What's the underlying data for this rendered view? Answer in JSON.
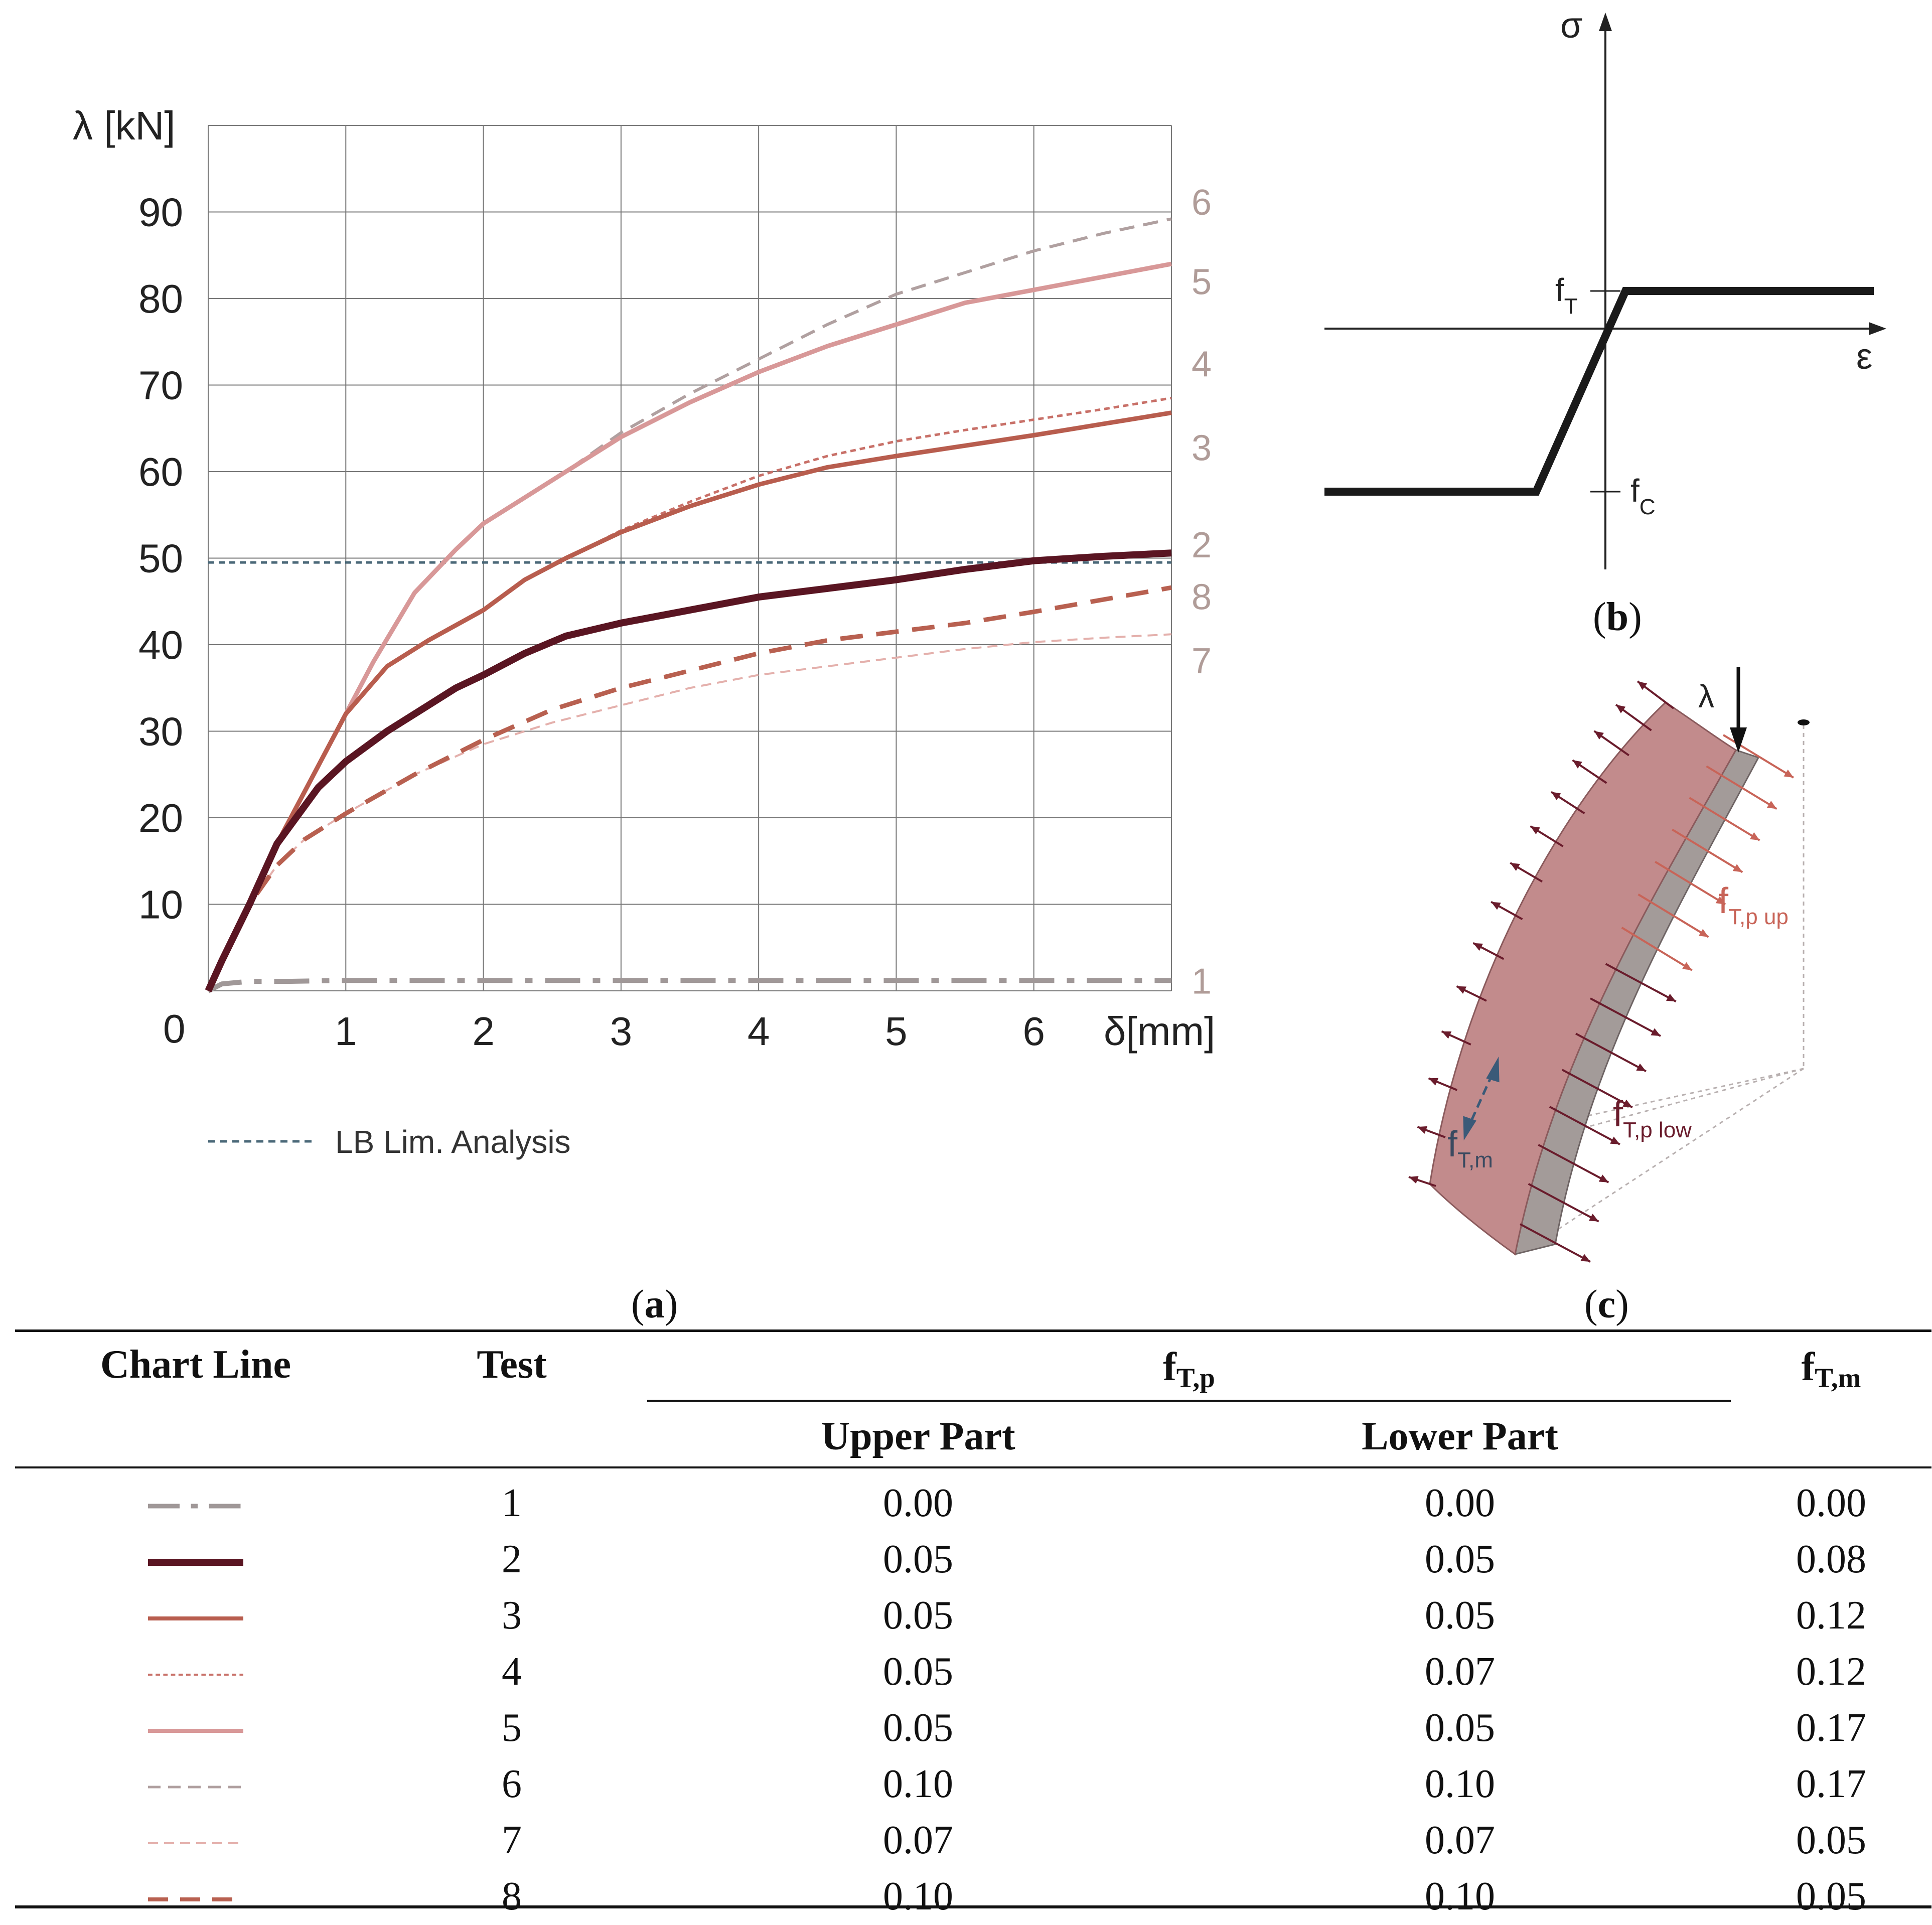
{
  "chart_data": [
    {
      "type": "line",
      "panel": "a",
      "ylabel": "λ [kN]",
      "xlabel": "δ[mm]",
      "xlim": [
        0,
        7
      ],
      "ylim": [
        0,
        100
      ],
      "x_ticks": [
        1,
        2,
        3,
        4,
        5,
        6
      ],
      "y_ticks": [
        10,
        20,
        30,
        40,
        50,
        60,
        70,
        80,
        90
      ],
      "origin_label": "0",
      "grid": true,
      "reference_line": {
        "name": "LB Lim. Analysis",
        "value": 49.5,
        "color": "#4a6878"
      },
      "series": [
        {
          "name": "1",
          "color": "#a09898",
          "style": "dashdot",
          "width": 10,
          "x": [
            0,
            0.1,
            0.3,
            0.6,
            1,
            2,
            3,
            4,
            5,
            6,
            7
          ],
          "y": [
            0,
            0.8,
            1.1,
            1.1,
            1.2,
            1.2,
            1.2,
            1.2,
            1.2,
            1.2,
            1.2
          ]
        },
        {
          "name": "2",
          "color": "#5a1522",
          "style": "solid",
          "width": 14,
          "x": [
            0,
            0.1,
            0.3,
            0.5,
            0.8,
            1.0,
            1.3,
            1.6,
            1.8,
            2.0,
            2.3,
            2.6,
            3.0,
            3.5,
            4.0,
            4.5,
            5.0,
            5.5,
            6.0,
            6.5,
            7.0
          ],
          "y": [
            0,
            3.5,
            10,
            17,
            23.5,
            26.5,
            30,
            33,
            35,
            36.5,
            39,
            41,
            42.5,
            44,
            45.5,
            46.5,
            47.5,
            48.7,
            49.7,
            50.2,
            50.6
          ]
        },
        {
          "name": "3",
          "color": "#b85d4e",
          "style": "solid",
          "width": 9,
          "x": [
            0,
            0.1,
            0.3,
            0.5,
            0.8,
            1.0,
            1.3,
            1.6,
            2.0,
            2.3,
            2.6,
            3.0,
            3.5,
            4.0,
            4.5,
            5.0,
            5.5,
            6.0,
            6.5,
            7.0
          ],
          "y": [
            0,
            3.5,
            10,
            17,
            26,
            32,
            37.5,
            40.5,
            44,
            47.5,
            50,
            53,
            56,
            58.5,
            60.5,
            61.8,
            63,
            64.2,
            65.5,
            66.8
          ]
        },
        {
          "name": "4",
          "color": "#c87068",
          "style": "dotted",
          "width": 5,
          "x": [
            0,
            0.1,
            0.3,
            0.5,
            0.8,
            1.0,
            1.3,
            1.6,
            2.0,
            2.3,
            2.6,
            3.0,
            3.5,
            4.0,
            4.5,
            5.0,
            5.5,
            6.0,
            6.5,
            7.0
          ],
          "y": [
            0,
            3.5,
            10,
            17,
            26,
            32,
            37.5,
            40.5,
            44,
            47.5,
            50,
            53.2,
            56.5,
            59.5,
            61.8,
            63.5,
            64.8,
            66,
            67.2,
            68.5
          ]
        },
        {
          "name": "5",
          "color": "#d89898",
          "style": "solid",
          "width": 9,
          "x": [
            0,
            0.1,
            0.3,
            0.5,
            0.8,
            1.0,
            1.2,
            1.5,
            1.8,
            2.0,
            2.3,
            2.6,
            3.0,
            3.5,
            4.0,
            4.5,
            5.0,
            5.5,
            6.0,
            6.5,
            7.0
          ],
          "y": [
            0,
            3.5,
            10,
            17,
            26,
            32,
            38,
            46,
            51,
            54,
            57,
            60,
            64,
            68,
            71.5,
            74.5,
            77,
            79.5,
            81,
            82.5,
            84
          ]
        },
        {
          "name": "6",
          "color": "#b0a0a0",
          "style": "dashed",
          "width": 6,
          "x": [
            0,
            0.1,
            0.3,
            0.5,
            0.8,
            1.0,
            1.2,
            1.5,
            1.8,
            2.0,
            2.3,
            2.6,
            3.0,
            3.5,
            4.0,
            4.5,
            5.0,
            5.5,
            6.0,
            6.5,
            7.0
          ],
          "y": [
            0,
            3.5,
            10,
            17,
            26,
            32,
            38,
            46,
            51,
            54,
            57,
            60,
            64.5,
            69,
            73,
            77,
            80.5,
            83,
            85.5,
            87.5,
            89.2
          ]
        },
        {
          "name": "7",
          "color": "#e4b0ac",
          "style": "dashed",
          "width": 4,
          "x": [
            0,
            0.1,
            0.3,
            0.5,
            0.7,
            1.0,
            1.5,
            2.0,
            2.5,
            3.0,
            3.5,
            4.0,
            4.5,
            5.0,
            5.5,
            6.0,
            6.5,
            7.0
          ],
          "y": [
            0,
            3.5,
            10,
            14.5,
            17.5,
            20.5,
            25,
            28.5,
            31,
            33,
            35,
            36.5,
            37.5,
            38.5,
            39.5,
            40.3,
            40.8,
            41.2
          ]
        },
        {
          "name": "8",
          "color": "#b86050",
          "style": "dashed",
          "width": 9,
          "x": [
            0,
            0.1,
            0.3,
            0.5,
            0.7,
            1.0,
            1.5,
            2.0,
            2.5,
            3.0,
            3.5,
            4.0,
            4.5,
            5.0,
            5.5,
            6.0,
            6.5,
            7.0
          ],
          "y": [
            0,
            3.5,
            10,
            14.5,
            17.5,
            20.5,
            25,
            29,
            32.5,
            35,
            37,
            39,
            40.5,
            41.5,
            42.5,
            43.8,
            45.2,
            46.6
          ]
        }
      ]
    },
    {
      "type": "line",
      "panel": "b",
      "ylabel": "σ",
      "xlabel": "ε",
      "labels": {
        "tension": "f",
        "tension_sub": "T",
        "compression": "f",
        "compression_sub": "C"
      }
    }
  ],
  "captions": {
    "a": "a",
    "b": "b",
    "c": "c"
  },
  "legend": {
    "reference_label": "LB Lim. Analysis"
  },
  "panel_c": {
    "load_label": "λ",
    "upper_label": "f",
    "upper_sub": "T,p up",
    "lower_label": "f",
    "lower_sub": "T,p low",
    "middle_label": "f",
    "middle_sub": "T,m"
  },
  "table": {
    "headers": {
      "chart_line": "Chart Line",
      "test": "Test",
      "ftp_main": "f",
      "ftp_sub": "T,p",
      "upper": "Upper Part",
      "lower": "Lower Part",
      "ftm_main": "f",
      "ftm_sub": "T,m"
    },
    "rows": [
      {
        "test": "1",
        "upper": "0.00",
        "lower": "0.00",
        "ftm": "0.00",
        "color": "#a09898",
        "style": "dashdot",
        "width": 9
      },
      {
        "test": "2",
        "upper": "0.05",
        "lower": "0.05",
        "ftm": "0.08",
        "color": "#5a1522",
        "style": "solid",
        "width": 14
      },
      {
        "test": "3",
        "upper": "0.05",
        "lower": "0.05",
        "ftm": "0.12",
        "color": "#b85d4e",
        "style": "solid",
        "width": 8
      },
      {
        "test": "4",
        "upper": "0.05",
        "lower": "0.07",
        "ftm": "0.12",
        "color": "#c87068",
        "style": "dotted",
        "width": 4
      },
      {
        "test": "5",
        "upper": "0.05",
        "lower": "0.05",
        "ftm": "0.17",
        "color": "#d89898",
        "style": "solid",
        "width": 8
      },
      {
        "test": "6",
        "upper": "0.10",
        "lower": "0.10",
        "ftm": "0.17",
        "color": "#b0a0a0",
        "style": "dashed",
        "width": 5
      },
      {
        "test": "7",
        "upper": "0.07",
        "lower": "0.07",
        "ftm": "0.05",
        "color": "#e4b0ac",
        "style": "dashed",
        "width": 4
      },
      {
        "test": "8",
        "upper": "0.10",
        "lower": "0.10",
        "ftm": "0.05",
        "color": "#b86050",
        "style": "dashed",
        "width": 8
      }
    ]
  }
}
